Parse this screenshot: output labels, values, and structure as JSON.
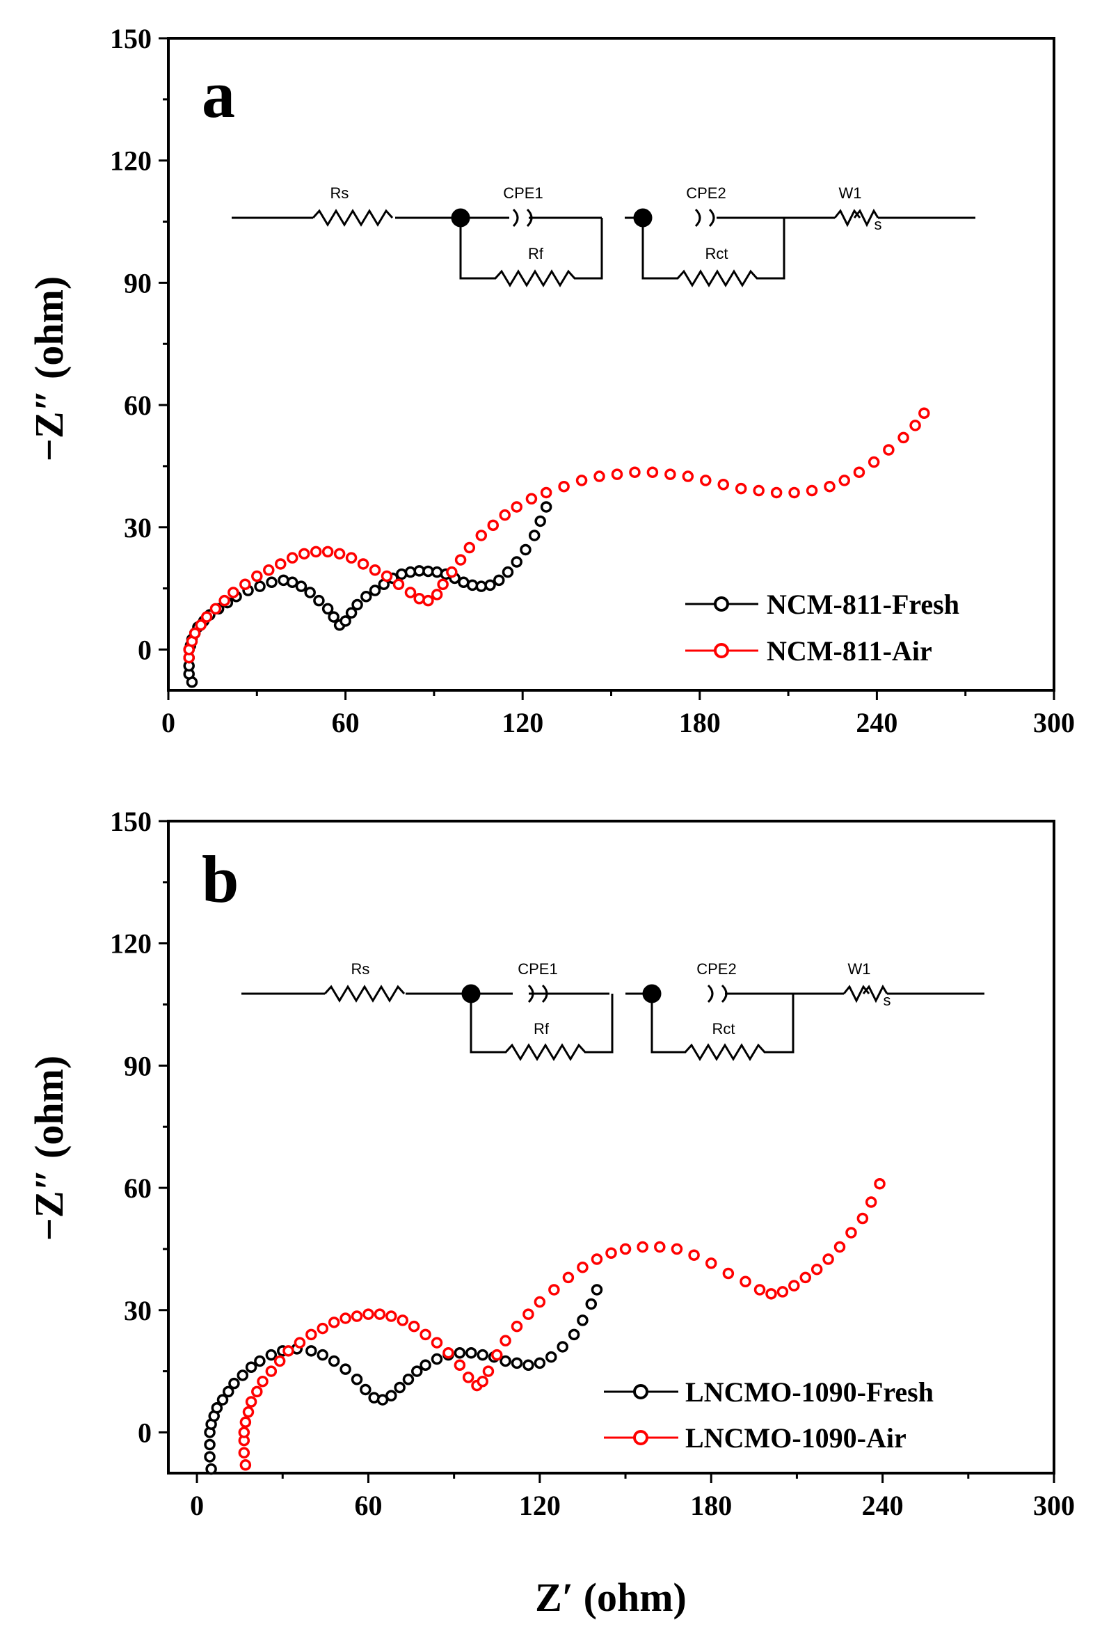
{
  "figure": {
    "xlabel": "Z′ (ohm)",
    "ylabel": "−Z″ (ohm)"
  },
  "chart_data": [
    {
      "type": "scatter",
      "panel": "a",
      "xlim": [
        0,
        300
      ],
      "ylim": [
        -10,
        150
      ],
      "xticks": [
        0,
        60,
        120,
        180,
        240,
        300
      ],
      "yticks": [
        0,
        30,
        60,
        90,
        120,
        150
      ],
      "ylabel": "−Z″ (ohm)",
      "legend_position": "bottom-right",
      "circuit": {
        "Rs": "Rs",
        "CPE1": "CPE1",
        "Rf": "Rf",
        "CPE2": "CPE2",
        "Rct": "Rct",
        "W1": "W1",
        "Ws": "s"
      },
      "series": [
        {
          "name": "NCM-811-Fresh",
          "color": "#000000",
          "points": [
            [
              8,
              -8
            ],
            [
              7,
              -6
            ],
            [
              7,
              -4
            ],
            [
              7,
              -2
            ],
            [
              7,
              0
            ],
            [
              7.5,
              1
            ],
            [
              8,
              2.5
            ],
            [
              9,
              4
            ],
            [
              10,
              5.5
            ],
            [
              12,
              7
            ],
            [
              14,
              8.5
            ],
            [
              17,
              10
            ],
            [
              20,
              11.5
            ],
            [
              23,
              13
            ],
            [
              27,
              14.5
            ],
            [
              31,
              15.5
            ],
            [
              35,
              16.5
            ],
            [
              39,
              17
            ],
            [
              42,
              16.5
            ],
            [
              45,
              15.5
            ],
            [
              48,
              14
            ],
            [
              51,
              12
            ],
            [
              54,
              10
            ],
            [
              56,
              8
            ],
            [
              58,
              6
            ],
            [
              60,
              7
            ],
            [
              62,
              9
            ],
            [
              64,
              11
            ],
            [
              67,
              13
            ],
            [
              70,
              14.5
            ],
            [
              73,
              16
            ],
            [
              76,
              17.5
            ],
            [
              79,
              18.5
            ],
            [
              82,
              19
            ],
            [
              85,
              19.3
            ],
            [
              88,
              19.2
            ],
            [
              91,
              19
            ],
            [
              94,
              18.5
            ],
            [
              97,
              17.5
            ],
            [
              100,
              16.5
            ],
            [
              103,
              15.8
            ],
            [
              106,
              15.5
            ],
            [
              109,
              15.8
            ],
            [
              112,
              17
            ],
            [
              115,
              19
            ],
            [
              118,
              21.5
            ],
            [
              121,
              24.5
            ],
            [
              124,
              28
            ],
            [
              126,
              31.5
            ],
            [
              128,
              35
            ]
          ]
        },
        {
          "name": "NCM-811-Air",
          "color": "#ff0000",
          "points": [
            [
              7,
              -2
            ],
            [
              7,
              0
            ],
            [
              8,
              2
            ],
            [
              9,
              4
            ],
            [
              11,
              6
            ],
            [
              13,
              8
            ],
            [
              16,
              10
            ],
            [
              19,
              12
            ],
            [
              22,
              14
            ],
            [
              26,
              16
            ],
            [
              30,
              18
            ],
            [
              34,
              19.5
            ],
            [
              38,
              21
            ],
            [
              42,
              22.5
            ],
            [
              46,
              23.5
            ],
            [
              50,
              24
            ],
            [
              54,
              24
            ],
            [
              58,
              23.5
            ],
            [
              62,
              22.5
            ],
            [
              66,
              21
            ],
            [
              70,
              19.5
            ],
            [
              74,
              18
            ],
            [
              78,
              16
            ],
            [
              82,
              14
            ],
            [
              85,
              12.5
            ],
            [
              88,
              12
            ],
            [
              91,
              13.5
            ],
            [
              93,
              16
            ],
            [
              96,
              19
            ],
            [
              99,
              22
            ],
            [
              102,
              25
            ],
            [
              106,
              28
            ],
            [
              110,
              30.5
            ],
            [
              114,
              33
            ],
            [
              118,
              35
            ],
            [
              123,
              37
            ],
            [
              128,
              38.5
            ],
            [
              134,
              40
            ],
            [
              140,
              41.5
            ],
            [
              146,
              42.5
            ],
            [
              152,
              43
            ],
            [
              158,
              43.5
            ],
            [
              164,
              43.5
            ],
            [
              170,
              43
            ],
            [
              176,
              42.5
            ],
            [
              182,
              41.5
            ],
            [
              188,
              40.5
            ],
            [
              194,
              39.5
            ],
            [
              200,
              39
            ],
            [
              206,
              38.5
            ],
            [
              212,
              38.5
            ],
            [
              218,
              39
            ],
            [
              224,
              40
            ],
            [
              229,
              41.5
            ],
            [
              234,
              43.5
            ],
            [
              239,
              46
            ],
            [
              244,
              49
            ],
            [
              249,
              52
            ],
            [
              253,
              55
            ],
            [
              256,
              58
            ]
          ]
        }
      ]
    },
    {
      "type": "scatter",
      "panel": "b",
      "xlim": [
        -10,
        300
      ],
      "ylim": [
        -10,
        150
      ],
      "xticks": [
        0,
        60,
        120,
        180,
        240,
        300
      ],
      "yticks": [
        0,
        30,
        60,
        90,
        120,
        150
      ],
      "xlabel": "Z′ (ohm)",
      "ylabel": "−Z″ (ohm)",
      "legend_position": "bottom-right",
      "circuit": {
        "Rs": "Rs",
        "CPE1": "CPE1",
        "Rf": "Rf",
        "CPE2": "CPE2",
        "Rct": "Rct",
        "W1": "W1",
        "Ws": "s"
      },
      "series": [
        {
          "name": "LNCMO-1090-Fresh",
          "color": "#000000",
          "points": [
            [
              5,
              -9
            ],
            [
              4.5,
              -6
            ],
            [
              4.5,
              -3
            ],
            [
              4.5,
              0
            ],
            [
              5,
              2
            ],
            [
              6,
              4
            ],
            [
              7,
              6
            ],
            [
              9,
              8
            ],
            [
              11,
              10
            ],
            [
              13,
              12
            ],
            [
              16,
              14
            ],
            [
              19,
              16
            ],
            [
              22,
              17.5
            ],
            [
              26,
              19
            ],
            [
              30,
              20
            ],
            [
              35,
              20.5
            ],
            [
              40,
              20
            ],
            [
              44,
              19
            ],
            [
              48,
              17.5
            ],
            [
              52,
              15.5
            ],
            [
              56,
              13
            ],
            [
              59,
              10.5
            ],
            [
              62,
              8.5
            ],
            [
              65,
              8
            ],
            [
              68,
              9
            ],
            [
              71,
              11
            ],
            [
              74,
              13
            ],
            [
              77,
              15
            ],
            [
              80,
              16.5
            ],
            [
              84,
              18
            ],
            [
              88,
              19
            ],
            [
              92,
              19.5
            ],
            [
              96,
              19.5
            ],
            [
              100,
              19
            ],
            [
              104,
              18.5
            ],
            [
              108,
              17.5
            ],
            [
              112,
              17
            ],
            [
              116,
              16.5
            ],
            [
              120,
              17
            ],
            [
              124,
              18.5
            ],
            [
              128,
              21
            ],
            [
              132,
              24
            ],
            [
              135,
              27.5
            ],
            [
              138,
              31.5
            ],
            [
              140,
              35
            ]
          ]
        },
        {
          "name": "LNCMO-1090-Air",
          "color": "#ff0000",
          "points": [
            [
              17,
              -8
            ],
            [
              16.5,
              -5
            ],
            [
              16.5,
              -2
            ],
            [
              16.5,
              0
            ],
            [
              17,
              2.5
            ],
            [
              18,
              5
            ],
            [
              19,
              7.5
            ],
            [
              21,
              10
            ],
            [
              23,
              12.5
            ],
            [
              26,
              15
            ],
            [
              29,
              17.5
            ],
            [
              32,
              20
            ],
            [
              36,
              22
            ],
            [
              40,
              24
            ],
            [
              44,
              25.5
            ],
            [
              48,
              27
            ],
            [
              52,
              28
            ],
            [
              56,
              28.5
            ],
            [
              60,
              29
            ],
            [
              64,
              29
            ],
            [
              68,
              28.5
            ],
            [
              72,
              27.5
            ],
            [
              76,
              26
            ],
            [
              80,
              24
            ],
            [
              84,
              22
            ],
            [
              88,
              19.5
            ],
            [
              92,
              16.5
            ],
            [
              95,
              13.5
            ],
            [
              98,
              11.5
            ],
            [
              100,
              12.5
            ],
            [
              102,
              15
            ],
            [
              105,
              19
            ],
            [
              108,
              22.5
            ],
            [
              112,
              26
            ],
            [
              116,
              29
            ],
            [
              120,
              32
            ],
            [
              125,
              35
            ],
            [
              130,
              38
            ],
            [
              135,
              40.5
            ],
            [
              140,
              42.5
            ],
            [
              145,
              44
            ],
            [
              150,
              45
            ],
            [
              156,
              45.5
            ],
            [
              162,
              45.5
            ],
            [
              168,
              45
            ],
            [
              174,
              43.5
            ],
            [
              180,
              41.5
            ],
            [
              186,
              39
            ],
            [
              192,
              37
            ],
            [
              197,
              35
            ],
            [
              201,
              34
            ],
            [
              205,
              34.5
            ],
            [
              209,
              36
            ],
            [
              213,
              38
            ],
            [
              217,
              40
            ],
            [
              221,
              42.5
            ],
            [
              225,
              45.5
            ],
            [
              229,
              49
            ],
            [
              233,
              52.5
            ],
            [
              236,
              56.5
            ],
            [
              239,
              61
            ]
          ]
        }
      ]
    }
  ]
}
